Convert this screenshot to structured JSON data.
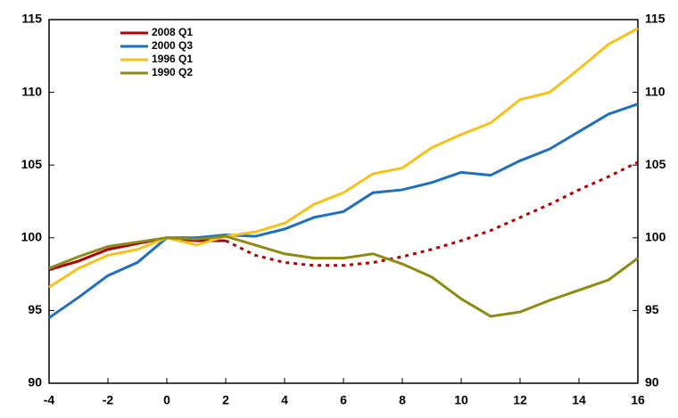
{
  "chart_data": {
    "type": "line",
    "x": [
      -4,
      -3,
      -2,
      -1,
      0,
      1,
      2,
      3,
      4,
      5,
      6,
      7,
      8,
      9,
      10,
      11,
      12,
      13,
      14,
      15,
      16
    ],
    "series": [
      {
        "name": "2008 Q1",
        "color": "#b00000",
        "dashed_from_x": 2,
        "values": [
          97.8,
          98.4,
          99.2,
          99.6,
          100,
          99.8,
          99.8,
          98.8,
          98.3,
          98.1,
          98.1,
          98.3,
          98.7,
          99.2,
          99.8,
          100.5,
          101.4,
          102.3,
          103.3,
          104.2,
          105.2
        ]
      },
      {
        "name": "2000 Q3",
        "color": "#1f6fc0",
        "values": [
          94.5,
          95.9,
          97.4,
          98.3,
          100,
          100.0,
          100.2,
          100.1,
          100.6,
          101.4,
          101.8,
          103.1,
          103.3,
          103.8,
          104.5,
          104.3,
          105.3,
          106.1,
          107.3,
          108.5,
          109.2
        ]
      },
      {
        "name": "1996 Q1",
        "color": "#f7c11a",
        "values": [
          96.6,
          97.9,
          98.8,
          99.2,
          100,
          99.5,
          100.1,
          100.4,
          101.0,
          102.3,
          103.1,
          104.4,
          104.8,
          106.2,
          107.1,
          107.9,
          109.5,
          110.0,
          111.6,
          113.3,
          114.4
        ]
      },
      {
        "name": "1990 Q2",
        "color": "#8c8c14",
        "values": [
          97.9,
          98.7,
          99.4,
          99.7,
          100,
          99.9,
          100.1,
          99.5,
          98.9,
          98.6,
          98.6,
          98.9,
          98.2,
          97.3,
          95.8,
          94.6,
          94.9,
          95.7,
          96.4,
          97.1,
          98.6
        ]
      }
    ],
    "xlim": [
      -4,
      16
    ],
    "xticks": [
      -4,
      -2,
      0,
      2,
      4,
      6,
      8,
      10,
      12,
      14,
      16
    ],
    "ylim": [
      90,
      115
    ],
    "yticks": [
      90,
      95,
      100,
      105,
      110,
      115
    ],
    "legend": "upper-left"
  }
}
